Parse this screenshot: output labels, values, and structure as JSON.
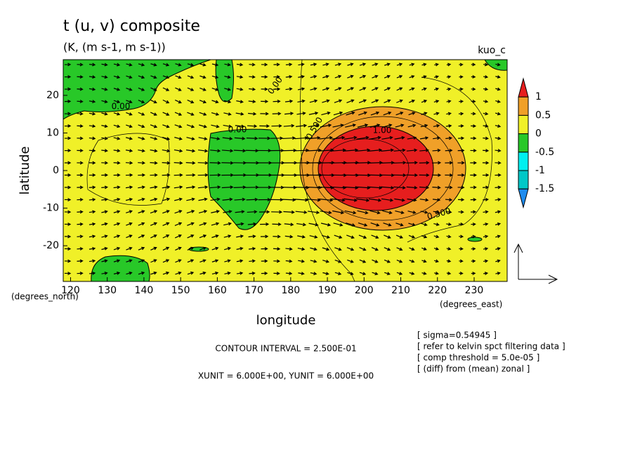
{
  "chart_data": {
    "type": "contour",
    "title": "t (u, v) composite",
    "subtitle": "(K, (m s-1, m s-1))",
    "run_label": "kuo_c",
    "x_label": "longitude",
    "y_label": "latitude",
    "x_units": "(degrees_east)",
    "y_units": "(degrees_north)",
    "xlim": [
      118,
      239
    ],
    "ylim": [
      -29.5,
      29.5
    ],
    "xticks": [
      120,
      130,
      140,
      150,
      160,
      170,
      180,
      190,
      200,
      210,
      220,
      230
    ],
    "yticks": [
      -20,
      -10,
      0,
      10,
      20
    ],
    "contour_labels": [
      "0.00",
      "0.00",
      "0.00",
      "0.500",
      "1.00",
      "0.500"
    ],
    "colorbar": {
      "levels": [
        -1.5,
        -1,
        -0.5,
        0,
        0.5,
        1
      ],
      "colors": [
        "#1e8cf0",
        "#00c8c8",
        "#00f0f0",
        "#28c828",
        "#f0f028",
        "#f0a028",
        "#e61e1e"
      ]
    },
    "contour_interval": "CONTOUR INTERVAL = 2.500E-01",
    "vector_units": "XUNIT = 6.000E+00, YUNIT = 6.000E+00",
    "notes": [
      "[ sigma=0.54945 ]",
      "[ refer to kelvin spct filtering data ]",
      "[ comp threshold = 5.0e-05 ]",
      "[ (diff) from (mean) zonal ]"
    ]
  }
}
